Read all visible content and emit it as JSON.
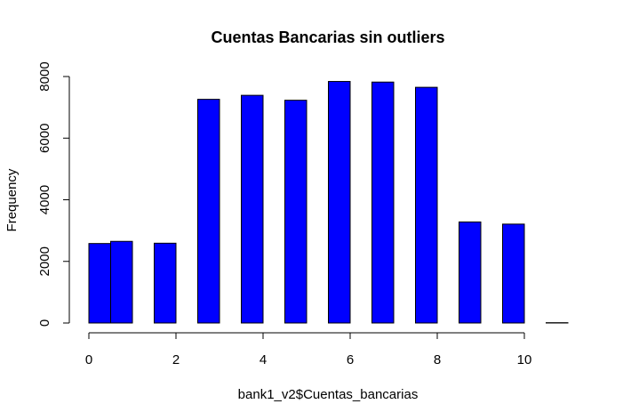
{
  "chart_data": {
    "type": "bar",
    "title": "Cuentas Bancarias sin outliers",
    "xlabel": "bank1_v2$Cuentas_bancarias",
    "ylabel": "Frequency",
    "color": "#0000ff",
    "bin_width": 0.5,
    "bin_starts": [
      0,
      0.5,
      1.5,
      2.5,
      3.5,
      4.5,
      5.5,
      6.5,
      7.5,
      8.5,
      9.5,
      10.5
    ],
    "values": [
      2580,
      2650,
      2590,
      7260,
      7390,
      7230,
      7840,
      7820,
      7650,
      3280,
      3210,
      10
    ],
    "xlim": [
      0,
      11
    ],
    "ylim": [
      0,
      8000
    ],
    "xticks": [
      "0",
      "2",
      "4",
      "6",
      "8",
      "10"
    ],
    "yticks": [
      "0",
      "2000",
      "4000",
      "6000",
      "8000"
    ],
    "grid": false,
    "legend": "none"
  }
}
